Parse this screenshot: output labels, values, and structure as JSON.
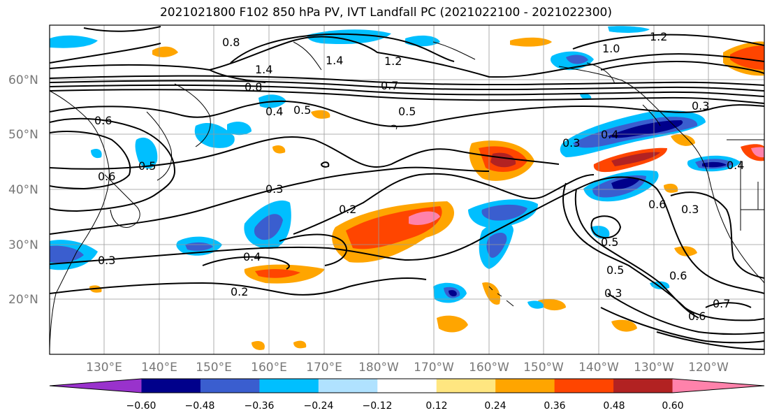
{
  "title": "2021021800 F102 850 hPa PV, IVT Landfall PC (2021022100 - 2021022300)",
  "lat_labels": [
    "60°N",
    "50°N",
    "40°N",
    "30°N",
    "20°N"
  ],
  "lon_labels": [
    "130°E",
    "140°E",
    "150°E",
    "160°E",
    "170°E",
    "180°W",
    "170°W",
    "160°W",
    "150°W",
    "140°W",
    "130°W",
    "120°W"
  ],
  "colorbar": {
    "colors": [
      "#9932cc",
      "#00008b",
      "#3a5ecf",
      "#00bfff",
      "#b0e2ff",
      "#ffffff",
      "#ffe680",
      "#ffa500",
      "#ff4500",
      "#b22222",
      "#ff82ab"
    ],
    "tick_labels": [
      "−0.60",
      "−0.48",
      "−0.36",
      "−0.24",
      "−0.12",
      "0.12",
      "0.24",
      "0.36",
      "0.48",
      "0.60"
    ]
  },
  "contour_labels": [
    "0.8",
    "1.4",
    "1.2",
    "1.4",
    "0.6",
    "1.0",
    "0.7",
    "0.8",
    "0.4",
    "0.5",
    "0.5",
    "0.3",
    "0.6",
    "0.5",
    "0.3",
    "0.4",
    "0.2",
    "0.3",
    "0.3",
    "0.4",
    "0.2",
    "0.5",
    "0.5",
    "0.3",
    "0.6",
    "0.6",
    "0.6",
    "0.7",
    "1.2",
    "0.3",
    "0.4"
  ],
  "colors": {
    "contour": "#000000",
    "grid": "#999999",
    "coast": "#000000"
  }
}
